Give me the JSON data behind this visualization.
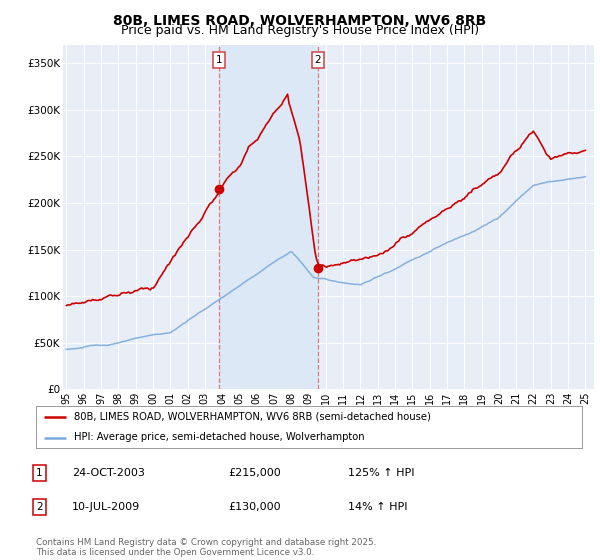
{
  "title": "80B, LIMES ROAD, WOLVERHAMPTON, WV6 8RB",
  "subtitle": "Price paid vs. HM Land Registry's House Price Index (HPI)",
  "ylabel_ticks": [
    "£0",
    "£50K",
    "£100K",
    "£150K",
    "£200K",
    "£250K",
    "£300K",
    "£350K"
  ],
  "ytick_values": [
    0,
    50000,
    100000,
    150000,
    200000,
    250000,
    300000,
    350000
  ],
  "ylim": [
    0,
    370000
  ],
  "xlim_start": 1994.8,
  "xlim_end": 2025.5,
  "plot_bg_color": "#e8eef8",
  "grid_color": "#ffffff",
  "red_line_color": "#cc0000",
  "blue_line_color": "#7aaadd",
  "shade_color": "#dce8f5",
  "marker1_x": 2003.82,
  "marker1_y": 215000,
  "marker2_x": 2009.53,
  "marker2_y": 130000,
  "vline_color": "#dd6666",
  "legend_label_red": "80B, LIMES ROAD, WOLVERHAMPTON, WV6 8RB (semi-detached house)",
  "legend_label_blue": "HPI: Average price, semi-detached house, Wolverhampton",
  "annotation1_label": "1",
  "annotation1_date": "24-OCT-2003",
  "annotation1_price": "£215,000",
  "annotation1_hpi": "125% ↑ HPI",
  "annotation2_label": "2",
  "annotation2_date": "10-JUL-2009",
  "annotation2_price": "£130,000",
  "annotation2_hpi": "14% ↑ HPI",
  "footer": "Contains HM Land Registry data © Crown copyright and database right 2025.\nThis data is licensed under the Open Government Licence v3.0.",
  "title_fontsize": 10,
  "subtitle_fontsize": 9
}
